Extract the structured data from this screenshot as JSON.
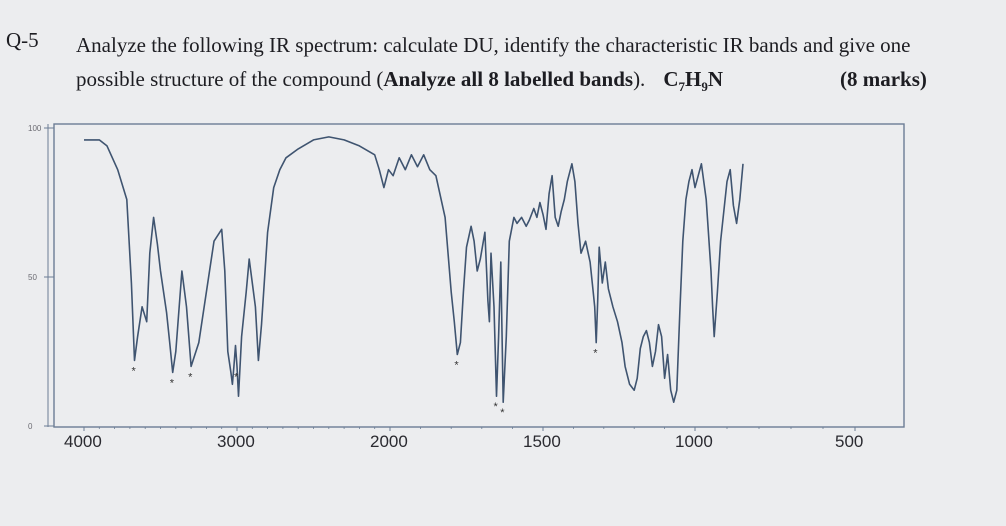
{
  "question": {
    "number": "Q-5",
    "line1": "Analyze the following IR spectrum: calculate DU, identify the characteristic IR bands and give one",
    "line2_plain": "possible structure of the compound (",
    "line2_bold": "Analyze all 8 labelled bands",
    "line2_end": ").",
    "formula_parts": [
      "C",
      "7",
      "H",
      "9",
      "N"
    ],
    "marks": "(8 marks)"
  },
  "chart_data": {
    "type": "line",
    "title": "",
    "xlabel": "",
    "ylabel": "",
    "x_ticks": [
      "4000",
      "3000",
      "2000",
      "1500",
      "1000",
      "500"
    ],
    "y_ticks": [
      "100",
      "50",
      "0"
    ],
    "ylim": [
      0,
      100
    ],
    "labelled_bands_marker": "*",
    "labelled_band_count": 8,
    "series": [
      {
        "points": [
          [
            4000,
            96
          ],
          [
            3900,
            96
          ],
          [
            3850,
            94
          ],
          [
            3780,
            86
          ],
          [
            3720,
            76
          ],
          [
            3690,
            48
          ],
          [
            3670,
            22
          ],
          [
            3650,
            30
          ],
          [
            3620,
            40
          ],
          [
            3590,
            35
          ],
          [
            3570,
            58
          ],
          [
            3545,
            70
          ],
          [
            3520,
            61
          ],
          [
            3500,
            52
          ],
          [
            3460,
            38
          ],
          [
            3440,
            28
          ],
          [
            3420,
            18
          ],
          [
            3400,
            25
          ],
          [
            3360,
            52
          ],
          [
            3330,
            40
          ],
          [
            3300,
            20
          ],
          [
            3250,
            28
          ],
          [
            3200,
            45
          ],
          [
            3150,
            62
          ],
          [
            3100,
            66
          ],
          [
            3080,
            52
          ],
          [
            3060,
            25
          ],
          [
            3040,
            18
          ],
          [
            3030,
            14
          ],
          [
            3020,
            20
          ],
          [
            3010,
            27
          ],
          [
            3000,
            20
          ],
          [
            2990,
            10
          ],
          [
            2970,
            30
          ],
          [
            2940,
            45
          ],
          [
            2920,
            56
          ],
          [
            2880,
            40
          ],
          [
            2860,
            22
          ],
          [
            2840,
            34
          ],
          [
            2800,
            65
          ],
          [
            2760,
            80
          ],
          [
            2720,
            86
          ],
          [
            2680,
            90
          ],
          [
            2600,
            93
          ],
          [
            2500,
            96
          ],
          [
            2400,
            97
          ],
          [
            2300,
            96
          ],
          [
            2200,
            94
          ],
          [
            2100,
            91
          ],
          [
            2070,
            86
          ],
          [
            2040,
            80
          ],
          [
            2010,
            86
          ],
          [
            1990,
            84
          ],
          [
            1970,
            90
          ],
          [
            1950,
            86
          ],
          [
            1930,
            91
          ],
          [
            1910,
            87
          ],
          [
            1890,
            91
          ],
          [
            1870,
            86
          ],
          [
            1850,
            84
          ],
          [
            1820,
            70
          ],
          [
            1800,
            45
          ],
          [
            1790,
            35
          ],
          [
            1780,
            24
          ],
          [
            1770,
            28
          ],
          [
            1760,
            45
          ],
          [
            1750,
            60
          ],
          [
            1735,
            67
          ],
          [
            1725,
            62
          ],
          [
            1715,
            52
          ],
          [
            1705,
            56
          ],
          [
            1690,
            65
          ],
          [
            1680,
            42
          ],
          [
            1675,
            35
          ],
          [
            1670,
            58
          ],
          [
            1660,
            40
          ],
          [
            1652,
            10
          ],
          [
            1645,
            30
          ],
          [
            1638,
            55
          ],
          [
            1630,
            8
          ],
          [
            1620,
            30
          ],
          [
            1610,
            62
          ],
          [
            1595,
            70
          ],
          [
            1585,
            68
          ],
          [
            1570,
            70
          ],
          [
            1555,
            67
          ],
          [
            1545,
            69
          ],
          [
            1530,
            73
          ],
          [
            1520,
            70
          ],
          [
            1510,
            75
          ],
          [
            1500,
            71
          ],
          [
            1490,
            66
          ],
          [
            1480,
            78
          ],
          [
            1470,
            84
          ],
          [
            1460,
            70
          ],
          [
            1450,
            67
          ],
          [
            1440,
            72
          ],
          [
            1430,
            76
          ],
          [
            1420,
            82
          ],
          [
            1405,
            88
          ],
          [
            1395,
            82
          ],
          [
            1385,
            68
          ],
          [
            1375,
            58
          ],
          [
            1360,
            62
          ],
          [
            1345,
            55
          ],
          [
            1335,
            45
          ],
          [
            1330,
            40
          ],
          [
            1325,
            28
          ],
          [
            1320,
            42
          ],
          [
            1315,
            60
          ],
          [
            1305,
            48
          ],
          [
            1295,
            55
          ],
          [
            1285,
            46
          ],
          [
            1270,
            40
          ],
          [
            1255,
            35
          ],
          [
            1240,
            28
          ],
          [
            1230,
            20
          ],
          [
            1215,
            14
          ],
          [
            1200,
            12
          ],
          [
            1190,
            16
          ],
          [
            1180,
            26
          ],
          [
            1170,
            30
          ],
          [
            1160,
            32
          ],
          [
            1150,
            28
          ],
          [
            1140,
            20
          ],
          [
            1130,
            25
          ],
          [
            1120,
            34
          ],
          [
            1110,
            30
          ],
          [
            1100,
            16
          ],
          [
            1090,
            24
          ],
          [
            1080,
            12
          ],
          [
            1070,
            8
          ],
          [
            1060,
            12
          ],
          [
            1050,
            38
          ],
          [
            1040,
            62
          ],
          [
            1030,
            76
          ],
          [
            1020,
            82
          ],
          [
            1010,
            86
          ],
          [
            1000,
            80
          ],
          [
            990,
            84
          ],
          [
            980,
            88
          ],
          [
            965,
            76
          ],
          [
            950,
            52
          ],
          [
            945,
            40
          ],
          [
            940,
            30
          ],
          [
            930,
            45
          ],
          [
            920,
            62
          ],
          [
            910,
            72
          ],
          [
            900,
            82
          ],
          [
            890,
            86
          ],
          [
            880,
            74
          ],
          [
            870,
            68
          ],
          [
            860,
            76
          ],
          [
            850,
            88
          ]
        ]
      }
    ]
  }
}
